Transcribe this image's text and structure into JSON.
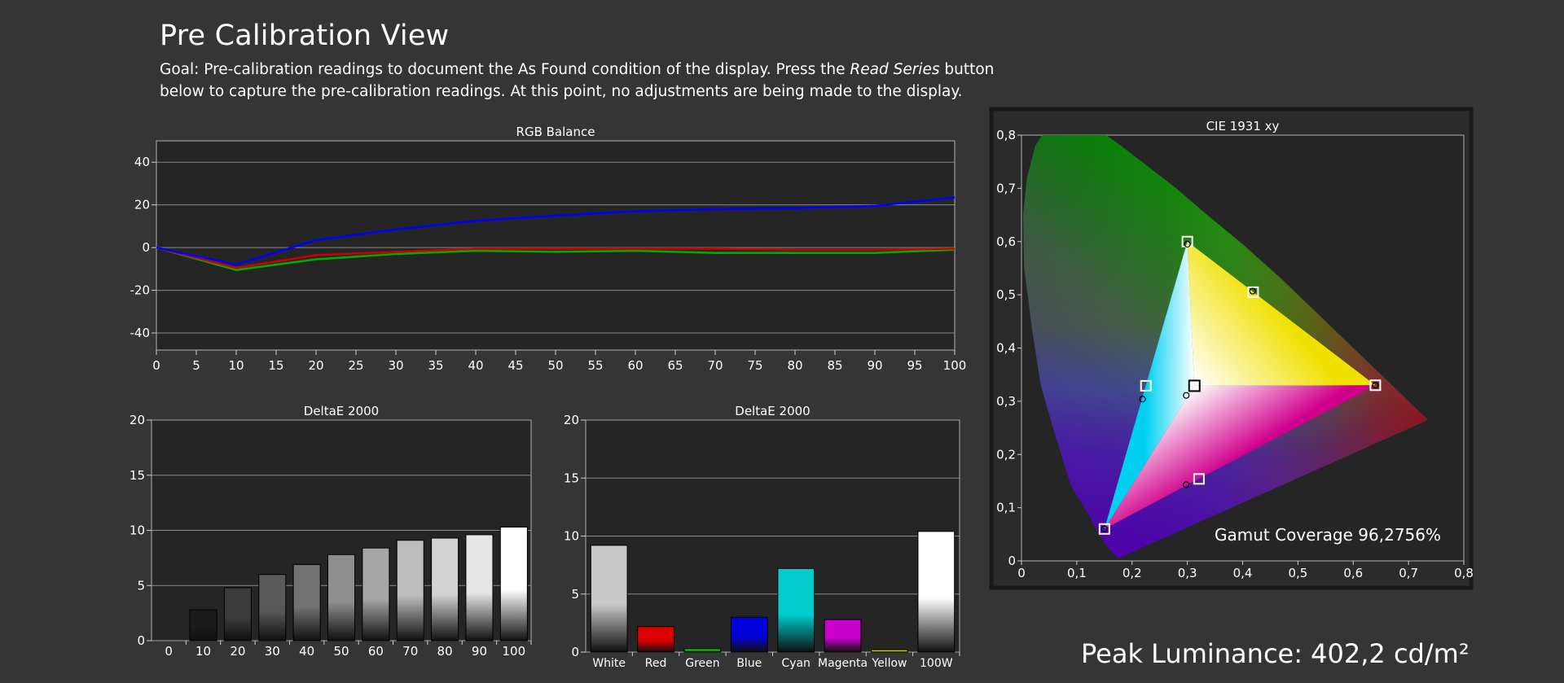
{
  "page": {
    "title": "Pre Calibration View",
    "goal_prefix": "Goal: Pre-calibration readings to document the As Found condition of the display. Press the ",
    "goal_emphasis": "Read Series",
    "goal_suffix": " button below to capture the pre-calibration readings. At this point, no adjustments are being made to the display.",
    "peak_luminance": "Peak Luminance: 402,2 cd/m²"
  },
  "chart_data": [
    {
      "id": "rgb-balance",
      "type": "line",
      "title": "RGB Balance",
      "xlabel": "",
      "ylabel": "",
      "x": [
        0,
        10,
        20,
        30,
        40,
        50,
        60,
        70,
        80,
        90,
        100
      ],
      "xticks": [
        "0",
        "5",
        "10",
        "15",
        "20",
        "25",
        "30",
        "35",
        "40",
        "45",
        "50",
        "55",
        "60",
        "65",
        "70",
        "75",
        "80",
        "85",
        "90",
        "95",
        "100"
      ],
      "yticks": [
        "40",
        "20",
        "0",
        "-20",
        "-40"
      ],
      "xlim": [
        0,
        100
      ],
      "ylim": [
        -48,
        50
      ],
      "grid": true,
      "series": [
        {
          "color": "#00aa00",
          "values": [
            0,
            -10.5,
            -5.5,
            -3,
            -1.5,
            -2,
            -1.5,
            -2.5,
            -2.5,
            -2.5,
            -1
          ]
        },
        {
          "color": "#cc0000",
          "values": [
            0,
            -9.5,
            -3.5,
            -2,
            -0.5,
            -0.5,
            -0.5,
            -0.5,
            -1,
            -1,
            -0.5
          ]
        },
        {
          "color": "#0000ff",
          "values": [
            0,
            -8,
            3.5,
            8.5,
            12.5,
            15,
            17,
            18,
            18.5,
            19.5,
            23.5
          ]
        }
      ]
    },
    {
      "id": "grayscale-deltae",
      "type": "bar",
      "title": "DeltaE 2000",
      "categories": [
        "0",
        "10",
        "20",
        "30",
        "40",
        "50",
        "60",
        "70",
        "80",
        "90",
        "100"
      ],
      "values": [
        0,
        2.8,
        4.8,
        6.0,
        6.9,
        7.8,
        8.4,
        9.1,
        9.3,
        9.6,
        10.3
      ],
      "colors": [
        "#000000",
        "#1b1b1b",
        "#3c3c3c",
        "#595959",
        "#737373",
        "#8e8e8e",
        "#a6a6a6",
        "#bdbdbd",
        "#d2d2d2",
        "#e5e5e5",
        "#ffffff"
      ],
      "yticks": [
        "20",
        "15",
        "10",
        "5",
        "0"
      ],
      "ylim": [
        0,
        20
      ],
      "grid": true
    },
    {
      "id": "color-deltae",
      "type": "bar",
      "title": "DeltaE 2000",
      "categories": [
        "White",
        "Red",
        "Green",
        "Blue",
        "Cyan",
        "Magenta",
        "Yellow",
        "100W"
      ],
      "values": [
        9.2,
        2.2,
        0.3,
        3.0,
        7.2,
        2.8,
        0.2,
        10.4
      ],
      "colors": [
        "#c8c8c8",
        "#dd0000",
        "#00bb00",
        "#0000dd",
        "#00cccc",
        "#cc00cc",
        "#cccc00",
        "#ffffff"
      ],
      "yticks": [
        "20",
        "15",
        "10",
        "5",
        "0"
      ],
      "ylim": [
        0,
        20
      ],
      "grid": true
    },
    {
      "id": "cie-1931",
      "type": "scatter",
      "title": "CIE 1931 xy",
      "xticks": [
        "0",
        "0,1",
        "0,2",
        "0,3",
        "0,4",
        "0,5",
        "0,6",
        "0,7",
        "0,8"
      ],
      "yticks": [
        "0,8",
        "0,7",
        "0,6",
        "0,5",
        "0,4",
        "0,3",
        "0,2",
        "0,1",
        "0"
      ],
      "xlim": [
        0,
        0.8
      ],
      "ylim": [
        0,
        0.8
      ],
      "targets": [
        {
          "name": "Red",
          "x": 0.64,
          "y": 0.33
        },
        {
          "name": "Green",
          "x": 0.3,
          "y": 0.6
        },
        {
          "name": "Blue",
          "x": 0.15,
          "y": 0.06
        },
        {
          "name": "White",
          "x": 0.3127,
          "y": 0.329
        },
        {
          "name": "Cyan",
          "x": 0.225,
          "y": 0.329
        },
        {
          "name": "Magenta",
          "x": 0.321,
          "y": 0.154
        },
        {
          "name": "Yellow",
          "x": 0.419,
          "y": 0.505
        }
      ],
      "measured": [
        {
          "name": "Red",
          "x": 0.64,
          "y": 0.33
        },
        {
          "name": "Green",
          "x": 0.3,
          "y": 0.595
        },
        {
          "name": "Blue",
          "x": 0.15,
          "y": 0.06
        },
        {
          "name": "White",
          "x": 0.298,
          "y": 0.311
        },
        {
          "name": "Cyan",
          "x": 0.219,
          "y": 0.304
        },
        {
          "name": "Magenta",
          "x": 0.298,
          "y": 0.143
        },
        {
          "name": "Yellow",
          "x": 0.418,
          "y": 0.507
        }
      ],
      "gamut_coverage": "Gamut Coverage 96,2756%"
    }
  ]
}
